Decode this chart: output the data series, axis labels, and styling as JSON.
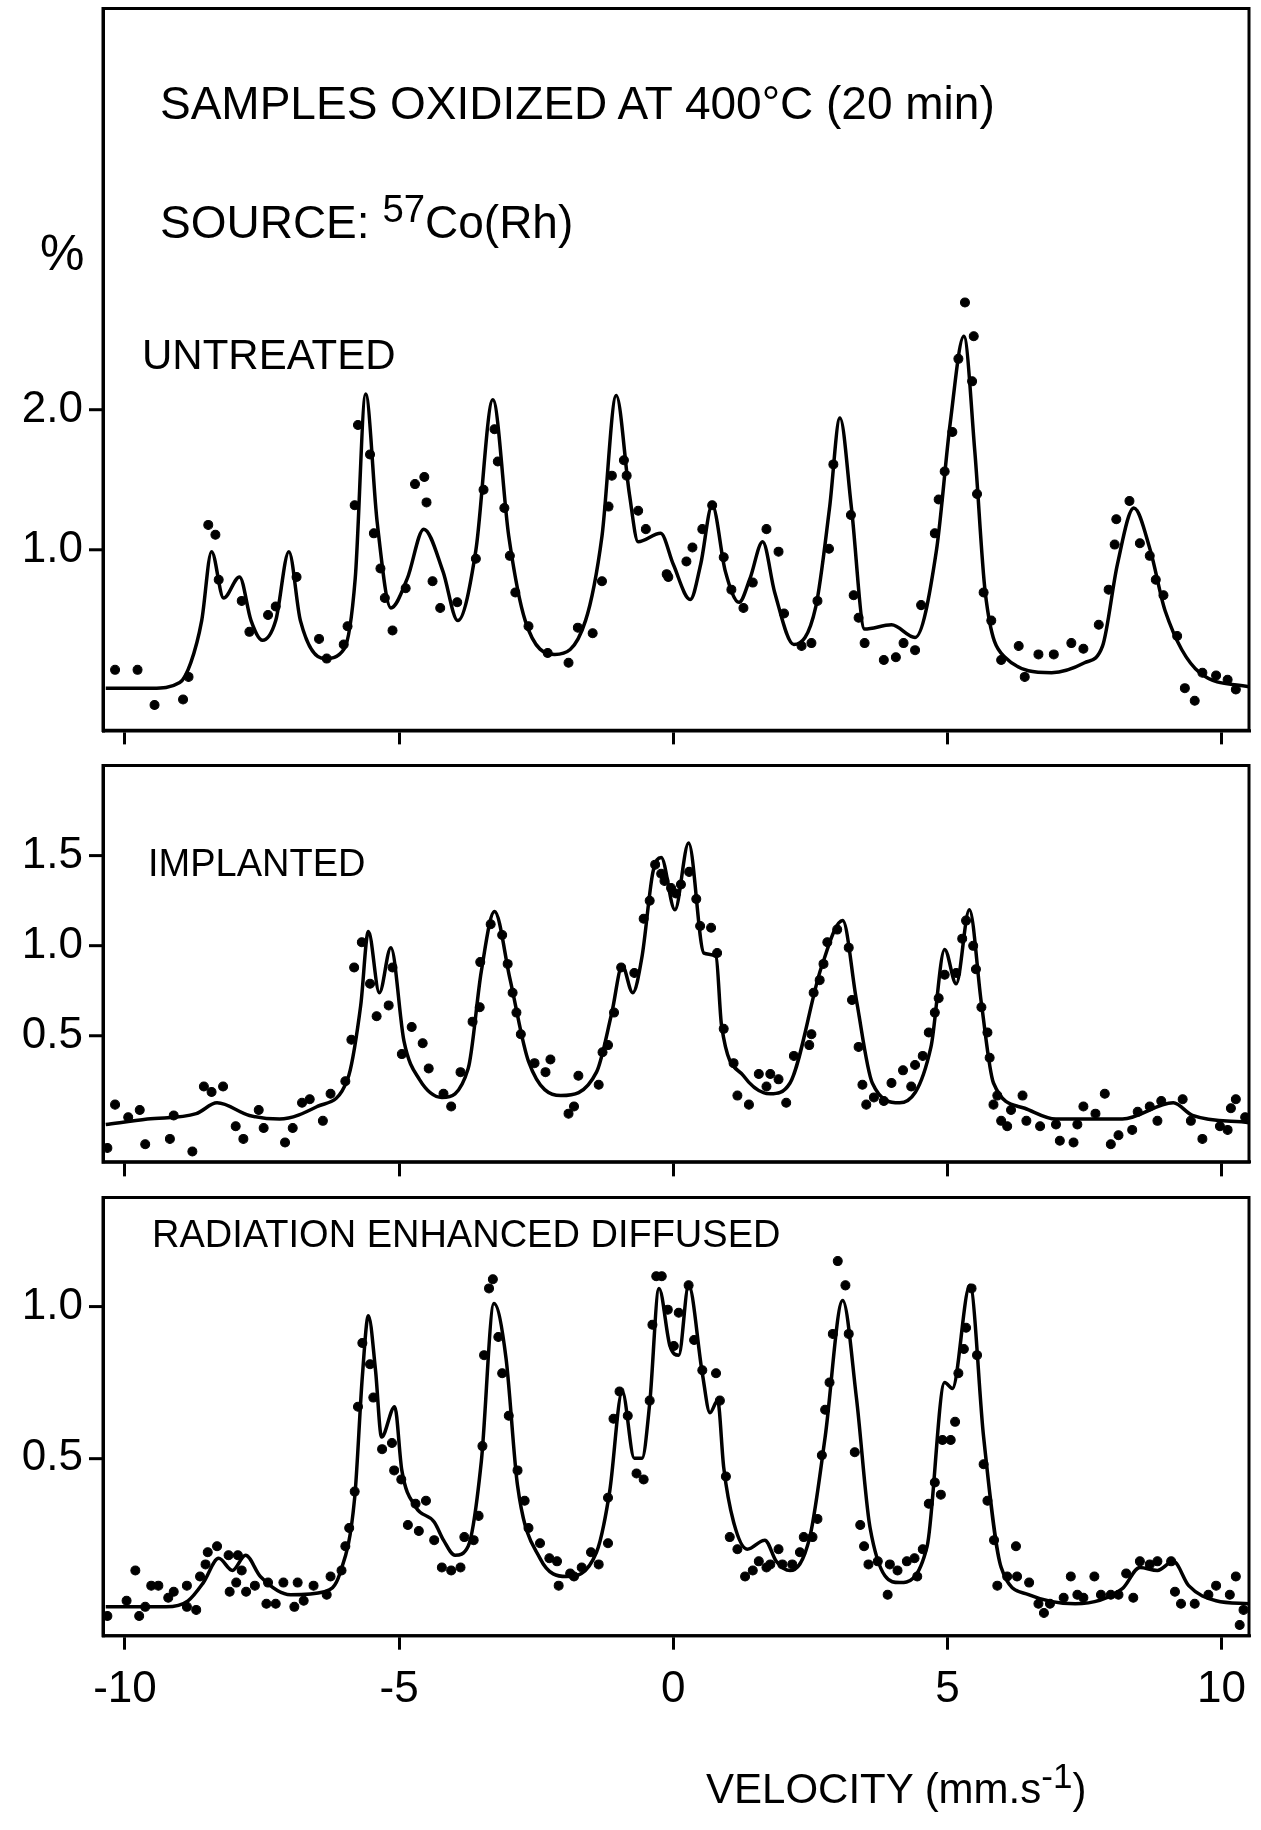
{
  "chart_data": [
    {
      "type": "scatter",
      "title": "SAMPLES OXIDIZED AT 400°C (20 min)",
      "subtitle": "SOURCE: $^{57}$Co(Rh)",
      "ylabel": "%",
      "annotations": [
        "UNTREATED"
      ],
      "xlim": [
        -10.4,
        10.5
      ],
      "xticks": [
        -10,
        -5,
        0,
        5,
        10
      ],
      "ylim": [
        -0.28,
        4.85
      ],
      "yticks": [
        {
          "value": 1,
          "label": "1.0"
        },
        {
          "value": 2,
          "label": "2.0"
        }
      ],
      "tick_labels": "y",
      "series": [
        {
          "type": "scatter",
          "marker": "circle",
          "color": "#000000",
          "x": [
            -10.18,
            -9.77,
            -9.46,
            -8.94,
            -8.84,
            -8.48,
            -8.35,
            -8.29,
            -7.87,
            -7.73,
            -7.39,
            -7.25,
            -6.87,
            -6.46,
            -6.32,
            -6.01,
            -5.94,
            -5.81,
            -5.75,
            -5.53,
            -5.46,
            -5.34,
            -5.26,
            -5.12,
            -4.88,
            -4.71,
            -4.54,
            -4.5,
            -4.39,
            -4.25,
            -3.94,
            -3.6,
            -3.46,
            -3.26,
            -3.2,
            -3.08,
            -2.98,
            -2.88,
            -2.64,
            -2.29,
            -1.91,
            -1.74,
            -1.47,
            -1.3,
            -1.18,
            -1.12,
            -0.9,
            -0.85,
            -0.64,
            -0.5,
            -0.12,
            -0.09,
            0.24,
            0.35,
            0.53,
            0.71,
            0.92,
            1.06,
            1.28,
            1.45,
            1.7,
            1.92,
            2.02,
            2.34,
            2.52,
            2.63,
            2.84,
            2.92,
            3.24,
            3.29,
            3.38,
            3.49,
            3.84,
            4.06,
            4.2,
            4.41,
            4.52,
            4.77,
            4.84,
            4.95,
            5.09,
            5.2,
            5.32,
            5.48,
            5.45,
            5.54,
            5.66,
            5.8,
            5.98,
            6.3,
            6.41,
            6.66,
            6.94,
            7.26,
            7.48,
            7.76,
            7.94,
            8.05,
            8.08,
            8.32,
            8.51,
            8.69,
            8.8,
            8.94,
            9.19,
            9.33,
            9.51,
            9.65,
            9.9,
            10.11,
            10.26
          ],
          "values": [
            0.15,
            0.15,
            -0.1,
            -0.06,
            0.1,
            1.18,
            1.11,
            0.79,
            0.64,
            0.42,
            0.54,
            0.6,
            0.81,
            0.37,
            0.23,
            0.33,
            0.46,
            1.32,
            1.89,
            1.68,
            1.12,
            0.87,
            0.66,
            0.43,
            0.73,
            1.47,
            1.52,
            1.34,
            0.78,
            0.59,
            0.63,
            0.94,
            1.43,
            1.86,
            1.63,
            1.3,
            0.96,
            0.7,
            0.46,
            0.27,
            0.2,
            0.45,
            0.41,
            0.78,
            1.31,
            1.53,
            1.64,
            1.53,
            1.28,
            1.15,
            0.83,
            0.81,
            0.92,
            1.02,
            1.15,
            1.32,
            0.95,
            0.72,
            0.59,
            0.77,
            1.15,
            0.99,
            0.55,
            0.32,
            0.34,
            0.64,
            1.01,
            1.61,
            1.25,
            0.68,
            0.52,
            0.34,
            0.22,
            0.24,
            0.34,
            0.29,
            0.61,
            1.12,
            1.36,
            1.56,
            1.84,
            2.36,
            2.76,
            2.52,
            2.2,
            1.4,
            0.7,
            0.5,
            0.22,
            0.32,
            0.1,
            0.26,
            0.26,
            0.34,
            0.3,
            0.47,
            0.72,
            1.04,
            1.22,
            1.35,
            1.05,
            0.96,
            0.79,
            0.68,
            0.39,
            0.02,
            -0.07,
            0.13,
            0.11,
            0.08,
            0.01
          ]
        },
        {
          "type": "line",
          "marker": "none",
          "color": "#000000",
          "x": [
            -10.35,
            -9.5,
            -9.0,
            -8.8,
            -8.6,
            -8.42,
            -8.2,
            -7.91,
            -7.7,
            -7.49,
            -7.25,
            -7.01,
            -6.8,
            -6.36,
            -6.0,
            -5.8,
            -5.61,
            -5.4,
            -5.15,
            -4.85,
            -4.55,
            -4.2,
            -3.93,
            -3.6,
            -3.29,
            -3.0,
            -2.7,
            -2.16,
            -1.6,
            -1.3,
            -1.04,
            -0.8,
            -0.64,
            -0.23,
            0.0,
            0.31,
            0.5,
            0.71,
            0.95,
            1.2,
            1.4,
            1.63,
            1.85,
            2.2,
            2.6,
            2.85,
            3.04,
            3.25,
            3.49,
            3.98,
            4.41,
            4.8,
            5.05,
            5.3,
            5.5,
            5.69,
            6.05,
            6.9,
            7.5,
            7.83,
            8.1,
            8.4,
            8.7,
            8.97,
            9.6,
            10.5
          ],
          "values": [
            0.02,
            0.02,
            0.06,
            0.2,
            0.5,
            0.99,
            0.66,
            0.81,
            0.5,
            0.36,
            0.5,
            0.99,
            0.5,
            0.23,
            0.3,
            0.8,
            2.11,
            1.2,
            0.59,
            0.8,
            1.15,
            0.85,
            0.5,
            1.0,
            2.07,
            1.1,
            0.5,
            0.26,
            0.5,
            1.1,
            2.1,
            1.4,
            1.06,
            1.12,
            0.9,
            0.65,
            0.9,
            1.32,
            0.85,
            0.63,
            0.8,
            1.06,
            0.7,
            0.33,
            0.6,
            1.3,
            1.94,
            1.3,
            0.44,
            0.47,
            0.38,
            1.0,
            1.9,
            2.52,
            1.7,
            0.7,
            0.24,
            0.13,
            0.2,
            0.32,
            0.9,
            1.3,
            1.0,
            0.57,
            0.13,
            0.03
          ]
        }
      ]
    },
    {
      "type": "scatter",
      "annotations": [
        "IMPLANTED"
      ],
      "xlim": [
        -10.4,
        10.5
      ],
      "xticks": [
        -10,
        -5,
        0,
        5,
        10
      ],
      "ylim": [
        -0.2,
        2.0
      ],
      "yticks": [
        {
          "value": 0.5,
          "label": "0.5"
        },
        {
          "value": 1,
          "label": "1.0"
        },
        {
          "value": 1.5,
          "label": "1.5"
        }
      ],
      "tick_labels": "y",
      "series": [
        {
          "type": "scatter",
          "marker": "circle",
          "color": "#000000",
          "x": [
            -10.32,
            -10.18,
            -9.94,
            -9.73,
            -9.63,
            -9.18,
            -9.11,
            -8.77,
            -8.56,
            -8.21,
            -8.42,
            -7.98,
            -7.84,
            -7.47,
            -7.56,
            -7.08,
            -6.94,
            -6.77,
            -6.63,
            -6.39,
            -6.25,
            -5.98,
            -5.87,
            -5.82,
            -5.68,
            -5.53,
            -5.41,
            -5.19,
            -5.12,
            -4.95,
            -4.77,
            -4.57,
            -4.46,
            -4.05,
            -4.19,
            -3.88,
            -3.66,
            -3.53,
            -3.52,
            -3.33,
            -3.12,
            -3.02,
            -2.93,
            -2.86,
            -2.78,
            -2.53,
            -2.24,
            -2.33,
            -1.91,
            -1.81,
            -1.73,
            -1.36,
            -1.29,
            -1.19,
            -1.08,
            -0.95,
            -0.71,
            -0.54,
            -0.43,
            -0.33,
            -0.16,
            0.05,
            -0.22,
            -0.04,
            0.14,
            0.29,
            0.42,
            0.49,
            0.69,
            0.8,
            0.92,
            1.1,
            1.17,
            1.38,
            1.56,
            1.77,
            1.7,
            1.92,
            2.06,
            2.2,
            2.48,
            2.52,
            2.56,
            2.67,
            2.74,
            2.81,
            2.99,
            3.2,
            3.26,
            3.38,
            3.45,
            3.52,
            3.66,
            3.84,
            3.98,
            4.19,
            4.34,
            4.41,
            4.55,
            4.66,
            4.77,
            4.84,
            4.95,
            5.16,
            5.27,
            5.34,
            5.47,
            5.52,
            5.62,
            5.73,
            5.77,
            5.91,
            5.84,
            5.98,
            6.09,
            6.16,
            6.37,
            6.44,
            6.69,
            6.98,
            7.05,
            7.3,
            7.37,
            7.48,
            7.7,
            7.87,
            7.98,
            8.12,
            8.37,
            8.47,
            8.69,
            8.83,
            8.9,
            9.29,
            9.44,
            9.65,
            9.97,
            10.11,
            10.17,
            10.26,
            10.43
          ],
          "values": [
            -0.12,
            0.12,
            0.05,
            0.09,
            -0.1,
            -0.07,
            0.06,
            -0.14,
            0.22,
            0.22,
            0.19,
            0.0,
            -0.07,
            -0.01,
            0.09,
            -0.09,
            -0.01,
            0.13,
            0.15,
            0.03,
            0.18,
            0.25,
            0.48,
            0.88,
            1.02,
            0.79,
            0.61,
            0.67,
            0.88,
            0.4,
            0.55,
            0.46,
            0.32,
            0.11,
            0.18,
            0.3,
            0.58,
            0.66,
            0.91,
            1.12,
            1.06,
            0.9,
            0.74,
            0.63,
            0.51,
            0.35,
            0.37,
            0.3,
            0.07,
            0.11,
            0.28,
            0.23,
            0.41,
            0.45,
            0.63,
            0.88,
            0.85,
            1.15,
            1.25,
            1.45,
            1.36,
            1.29,
            1.4,
            1.32,
            1.34,
            1.41,
            1.26,
            1.11,
            1.1,
            0.96,
            0.54,
            0.35,
            0.17,
            0.12,
            0.29,
            0.29,
            0.22,
            0.26,
            0.13,
            0.39,
            0.45,
            0.51,
            0.74,
            0.81,
            0.9,
            1.02,
            1.09,
            0.99,
            0.7,
            0.44,
            0.23,
            0.12,
            0.16,
            0.14,
            0.24,
            0.31,
            0.22,
            0.34,
            0.39,
            0.52,
            0.63,
            0.71,
            0.84,
            0.85,
            1.04,
            1.14,
            1.0,
            0.87,
            0.66,
            0.52,
            0.38,
            0.17,
            0.12,
            0.03,
            0.0,
            0.09,
            0.17,
            0.03,
            0.0,
            0.01,
            -0.08,
            -0.09,
            0.01,
            0.11,
            0.07,
            0.18,
            -0.1,
            -0.05,
            -0.02,
            0.08,
            0.11,
            0.03,
            0.14,
            0.15,
            0.03,
            -0.07,
            0.0,
            -0.02,
            0.1,
            0.15,
            0.05
          ]
        },
        {
          "type": "line",
          "marker": "none",
          "color": "#000000",
          "x": [
            -10.35,
            -9.59,
            -8.7,
            -8.32,
            -7.73,
            -7.18,
            -6.49,
            -5.94,
            -5.7,
            -5.56,
            -5.36,
            -5.15,
            -4.91,
            -4.63,
            -4.22,
            -3.74,
            -3.5,
            -3.26,
            -2.98,
            -2.64,
            -2.05,
            -1.4,
            -1.12,
            -0.93,
            -0.74,
            -0.57,
            -0.37,
            -0.22,
            0.03,
            0.28,
            0.56,
            0.78,
            0.88,
            1.28,
            1.77,
            2.13,
            2.7,
            3.09,
            3.34,
            3.63,
            4.13,
            4.7,
            4.95,
            5.16,
            5.4,
            5.62,
            5.84,
            6.41,
            6.98,
            8.19,
            9.12,
            9.47,
            10.5
          ],
          "values": [
            0.01,
            0.04,
            0.07,
            0.13,
            0.06,
            0.04,
            0.11,
            0.26,
            0.67,
            1.08,
            0.74,
            0.99,
            0.47,
            0.26,
            0.16,
            0.32,
            0.86,
            1.19,
            0.82,
            0.36,
            0.17,
            0.3,
            0.63,
            0.89,
            0.74,
            0.94,
            1.41,
            1.49,
            1.2,
            1.57,
            0.96,
            0.94,
            0.56,
            0.28,
            0.18,
            0.24,
            0.88,
            1.14,
            0.7,
            0.24,
            0.13,
            0.44,
            0.98,
            0.79,
            1.2,
            0.68,
            0.24,
            0.1,
            0.04,
            0.04,
            0.13,
            0.06,
            0.02
          ]
        }
      ]
    },
    {
      "type": "scatter",
      "annotations": [
        "RADIATION ENHANCED DIFFUSED"
      ],
      "xlabel": "VELOCITY (mm.s$^{-1}$)",
      "xlim": [
        -10.4,
        10.5
      ],
      "xticks": [
        -10,
        -5,
        0,
        5,
        10
      ],
      "ylim": [
        -0.085,
        1.36
      ],
      "yticks": [
        {
          "value": 0.5,
          "label": "0.5"
        },
        {
          "value": 1,
          "label": "1.0"
        }
      ],
      "series": [
        {
          "type": "scatter",
          "marker": "circle",
          "color": "#000000",
          "x": [
            -10.32,
            -9.97,
            -9.81,
            -9.74,
            -9.63,
            -9.52,
            -9.39,
            -9.21,
            -9.11,
            -8.87,
            -8.87,
            -8.7,
            -8.63,
            -8.53,
            -8.49,
            -8.32,
            -8.11,
            -8.09,
            -7.97,
            -7.94,
            -7.87,
            -7.79,
            -7.63,
            -7.42,
            -7.39,
            -7.25,
            -7.11,
            -6.91,
            -6.85,
            -6.74,
            -6.56,
            -6.32,
            -6.25,
            -6.05,
            -5.98,
            -5.91,
            -5.81,
            -5.75,
            -5.67,
            -5.53,
            -5.47,
            -5.31,
            -5.13,
            -5.09,
            -4.96,
            -4.84,
            -4.64,
            -4.7,
            -4.51,
            -4.36,
            -4.22,
            -4.05,
            -3.88,
            -3.81,
            -3.64,
            -3.55,
            -3.48,
            -3.45,
            -3.36,
            -3.29,
            -3.19,
            -3.12,
            -3.0,
            -2.84,
            -2.71,
            -2.64,
            -2.43,
            -2.26,
            -2.12,
            -2.09,
            -1.88,
            -1.81,
            -1.67,
            -1.5,
            -1.36,
            -1.19,
            -1.19,
            -1.09,
            -0.98,
            -0.83,
            -0.67,
            -0.54,
            -0.43,
            -0.38,
            -0.31,
            -0.21,
            -0.1,
            0.01,
            0.1,
            0.28,
            0.38,
            0.53,
            0.78,
            0.85,
            0.96,
            1.03,
            1.17,
            1.31,
            1.45,
            1.56,
            1.7,
            1.77,
            1.92,
            1.99,
            2.17,
            2.31,
            2.38,
            2.54,
            2.63,
            2.71,
            2.77,
            2.85,
            2.91,
            3.0,
            3.14,
            3.2,
            3.31,
            3.41,
            3.48,
            3.56,
            3.73,
            3.91,
            3.95,
            4.09,
            4.26,
            4.4,
            4.45,
            4.55,
            4.66,
            4.77,
            4.88,
            4.91,
            5.06,
            5.14,
            5.2,
            5.3,
            5.34,
            5.44,
            5.54,
            5.66,
            5.73,
            5.85,
            5.91,
            6.09,
            6.25,
            6.27,
            6.49,
            6.66,
            6.76,
            6.87,
            7.12,
            7.25,
            7.37,
            7.48,
            7.68,
            7.8,
            7.98,
            8.12,
            8.26,
            8.39,
            8.51,
            8.69,
            8.83,
            9.08,
            9.15,
            9.26,
            9.51,
            9.76,
            9.9,
            10.15,
            10.26,
            10.4,
            10.33
          ],
          "values": [
            -0.02,
            0.03,
            0.13,
            -0.02,
            0.01,
            0.08,
            0.08,
            0.04,
            0.06,
            0.08,
            0.01,
            0.0,
            0.11,
            0.15,
            0.19,
            0.21,
            0.18,
            0.06,
            0.09,
            0.18,
            0.13,
            0.06,
            0.08,
            0.02,
            0.09,
            0.02,
            0.09,
            0.01,
            0.09,
            0.03,
            0.08,
            0.05,
            0.11,
            0.13,
            0.21,
            0.27,
            0.39,
            0.67,
            0.88,
            0.81,
            0.7,
            0.53,
            0.55,
            0.46,
            0.43,
            0.28,
            0.26,
            0.35,
            0.36,
            0.23,
            0.14,
            0.13,
            0.14,
            0.24,
            0.23,
            0.31,
            0.54,
            0.84,
            1.06,
            1.09,
            0.9,
            0.78,
            0.64,
            0.46,
            0.36,
            0.27,
            0.22,
            0.17,
            0.16,
            0.08,
            0.12,
            0.11,
            0.14,
            0.19,
            0.15,
            0.22,
            0.37,
            0.63,
            0.72,
            0.64,
            0.45,
            0.43,
            0.69,
            0.94,
            1.1,
            1.1,
            0.99,
            0.87,
            0.98,
            1.07,
            0.89,
            0.79,
            0.78,
            0.69,
            0.44,
            0.24,
            0.2,
            0.11,
            0.13,
            0.16,
            0.14,
            0.15,
            0.2,
            0.15,
            0.15,
            0.19,
            0.24,
            0.24,
            0.3,
            0.51,
            0.66,
            0.75,
            0.91,
            1.15,
            1.07,
            0.91,
            0.52,
            0.28,
            0.21,
            0.15,
            0.16,
            0.05,
            0.15,
            0.13,
            0.16,
            0.17,
            0.11,
            0.2,
            0.35,
            0.42,
            0.38,
            0.56,
            0.56,
            0.62,
            0.78,
            0.86,
            0.93,
            1.06,
            0.84,
            0.48,
            0.36,
            0.23,
            0.08,
            0.11,
            0.21,
            0.11,
            0.09,
            0.02,
            -0.01,
            0.02,
            0.04,
            0.11,
            0.05,
            0.04,
            0.11,
            0.05,
            0.05,
            0.05,
            0.12,
            0.04,
            0.16,
            0.15,
            0.16,
            0.16,
            0.06,
            0.02,
            0.02,
            0.05,
            0.08,
            0.05,
            0.11,
            0.0,
            -0.05
          ]
        },
        {
          "type": "line",
          "marker": "none",
          "color": "#000000",
          "x": [
            -10.35,
            -9.25,
            -8.85,
            -8.57,
            -8.29,
            -8.04,
            -7.8,
            -7.53,
            -6.98,
            -6.36,
            -6.08,
            -5.81,
            -5.67,
            -5.56,
            -5.43,
            -5.32,
            -5.08,
            -4.95,
            -4.7,
            -4.36,
            -4.19,
            -3.98,
            -3.74,
            -3.5,
            -3.27,
            -3.05,
            -2.84,
            -2.43,
            -1.95,
            -1.4,
            -1.16,
            -0.93,
            -0.71,
            -0.57,
            -0.43,
            -0.26,
            -0.06,
            0.1,
            0.28,
            0.53,
            0.67,
            0.81,
            0.92,
            1.1,
            1.35,
            1.67,
            1.88,
            2.13,
            2.49,
            2.77,
            3.09,
            3.34,
            3.59,
            4.13,
            4.63,
            4.95,
            5.09,
            5.41,
            5.66,
            5.98,
            6.48,
            7.33,
            8.19,
            8.51,
            8.83,
            9.12,
            9.4,
            9.9,
            10.5
          ],
          "values": [
            0.01,
            0.01,
            0.03,
            0.09,
            0.17,
            0.13,
            0.18,
            0.11,
            0.05,
            0.06,
            0.12,
            0.37,
            0.77,
            0.97,
            0.79,
            0.57,
            0.67,
            0.46,
            0.34,
            0.29,
            0.23,
            0.18,
            0.21,
            0.49,
            1.01,
            0.83,
            0.41,
            0.17,
            0.11,
            0.19,
            0.39,
            0.72,
            0.5,
            0.5,
            0.68,
            1.06,
            0.87,
            0.84,
            1.07,
            0.78,
            0.65,
            0.69,
            0.47,
            0.29,
            0.2,
            0.23,
            0.16,
            0.13,
            0.24,
            0.57,
            1.02,
            0.7,
            0.27,
            0.09,
            0.21,
            0.75,
            0.73,
            1.07,
            0.57,
            0.14,
            0.05,
            0.02,
            0.07,
            0.14,
            0.13,
            0.16,
            0.08,
            0.03,
            0.02
          ]
        }
      ]
    }
  ]
}
